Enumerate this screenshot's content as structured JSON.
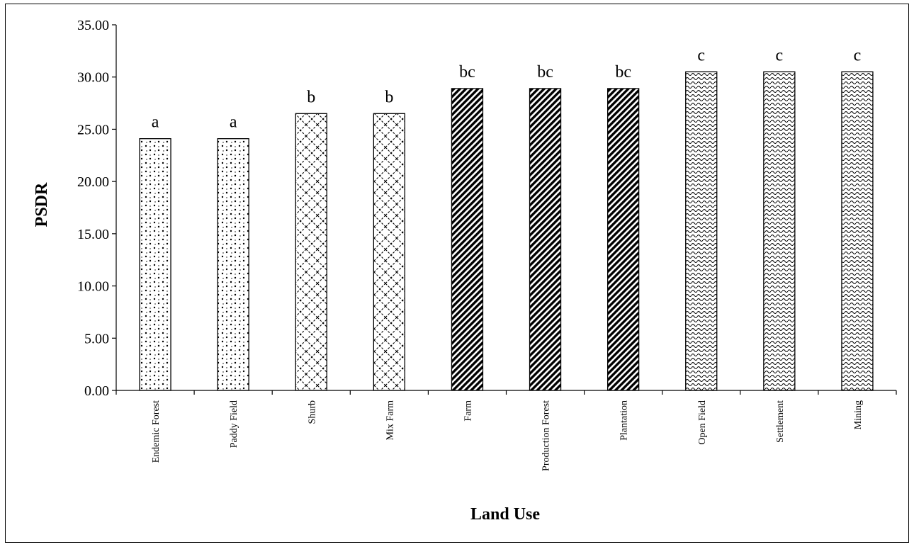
{
  "chart_data": {
    "type": "bar",
    "title": "",
    "xlabel": "Land Use",
    "ylabel": "PSDR",
    "ylim": [
      0,
      35
    ],
    "yticks": [
      "0.00",
      "5.00",
      "10.00",
      "15.00",
      "20.00",
      "25.00",
      "30.00",
      "35.00"
    ],
    "grid": false,
    "legend": "none",
    "categories": [
      "Endemic Forest",
      "Paddy Field",
      "Shurb",
      "Mix Farm",
      "Farm",
      "Production Forest",
      "Plantation",
      "Open Field",
      "Settlement",
      "Mining"
    ],
    "values": [
      24.1,
      24.1,
      26.5,
      26.5,
      28.9,
      28.9,
      28.9,
      30.5,
      30.5,
      30.5
    ],
    "annotations": [
      "a",
      "a",
      "b",
      "b",
      "bc",
      "bc",
      "bc",
      "c",
      "c",
      "c"
    ],
    "patterns": [
      "dots",
      "dots",
      "lattice",
      "lattice",
      "dense-diagonal",
      "dense-diagonal",
      "dense-diagonal",
      "wave",
      "wave",
      "wave"
    ],
    "colors": {
      "fill": "#ffffff",
      "ink": "#000000"
    }
  }
}
